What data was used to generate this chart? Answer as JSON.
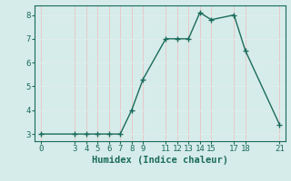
{
  "title": "",
  "xlabel": "Humidex (Indice chaleur)",
  "ylabel": "",
  "background_color": "#d6ecea",
  "grid_color": "#f0f8f7",
  "line_color": "#1a6b5a",
  "marker_color": "#1a6b5a",
  "x_data": [
    0,
    3,
    4,
    5,
    6,
    7,
    8,
    9,
    11,
    12,
    13,
    14,
    15,
    17,
    18,
    21
  ],
  "y_data": [
    3,
    3,
    3,
    3,
    3,
    3,
    4,
    5.3,
    7,
    7,
    7,
    8.1,
    7.8,
    8,
    6.5,
    3.4
  ],
  "xlim": [
    -0.5,
    21.5
  ],
  "ylim": [
    2.7,
    8.4
  ],
  "xticks": [
    0,
    3,
    4,
    5,
    6,
    7,
    8,
    9,
    11,
    12,
    13,
    14,
    15,
    17,
    18,
    21
  ],
  "yticks": [
    3,
    4,
    5,
    6,
    7,
    8
  ],
  "tick_fontsize": 6.5,
  "label_fontsize": 7.5
}
